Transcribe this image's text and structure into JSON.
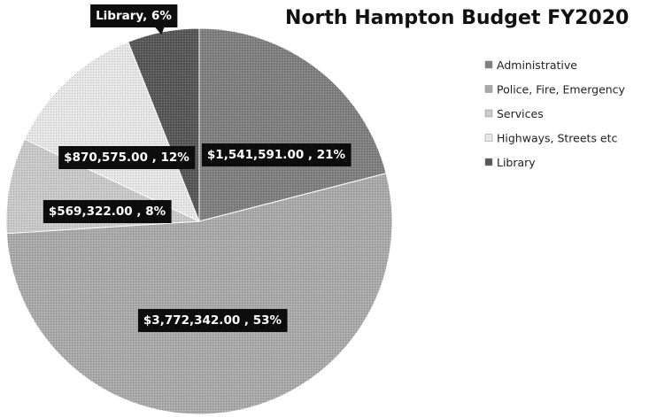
{
  "chart_data": {
    "type": "pie",
    "title": "North Hampton Budget FY2020",
    "legend_position": "right",
    "series": [
      {
        "name": "Administrative",
        "label": "$1,541,591.00 , 21%",
        "percent": 21,
        "color": "#7f7f7f"
      },
      {
        "name": "Police, Fire, Emergency",
        "label": "$3,772,342.00 , 53%",
        "percent": 53,
        "color": "#a9a9a9"
      },
      {
        "name": "Services",
        "label": "$569,322.00 , 8%",
        "percent": 8,
        "color": "#c9c9c9"
      },
      {
        "name": "Highways, Streets etc",
        "label": "$870,575.00 , 12%",
        "percent": 12,
        "color": "#e6e6e6"
      },
      {
        "name": "Library",
        "label": "Library, 6%",
        "percent": 6,
        "color": "#575757"
      }
    ]
  }
}
